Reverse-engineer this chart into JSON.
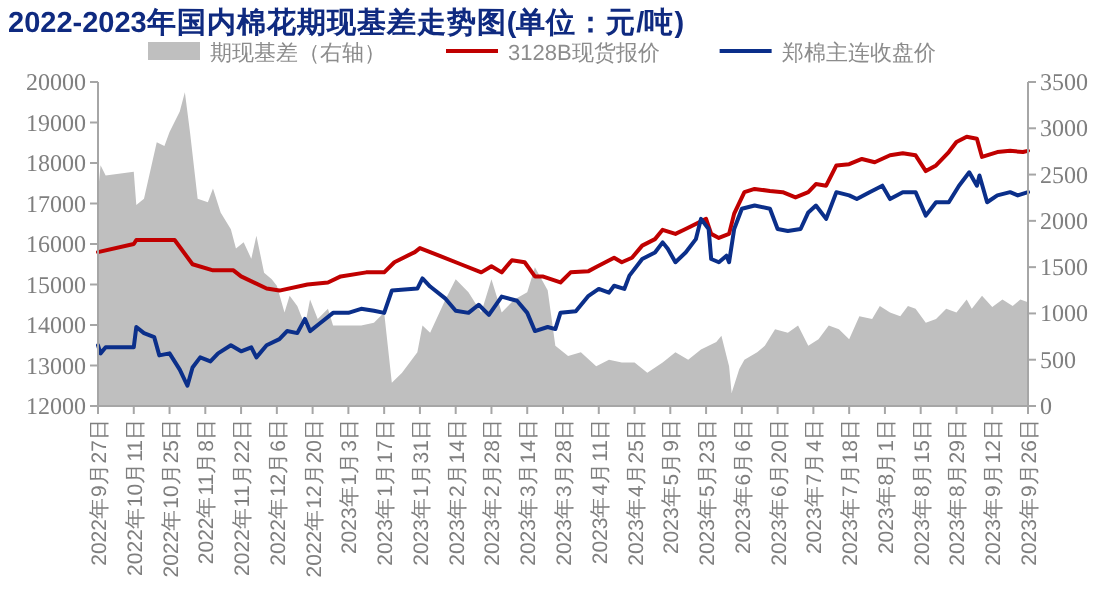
{
  "chart_data": {
    "type": "line",
    "title": "2022-2023年国内棉花期现基差走势图(单位：元/吨)",
    "legend": "top",
    "xlim": [
      "2022-09-27",
      "2023-09-26"
    ],
    "xticks": [
      {
        "value": "2022-09-27",
        "label": "2022年9月27日"
      },
      {
        "value": "2022-10-11",
        "label": "2022年10月11日"
      },
      {
        "value": "2022-10-25",
        "label": "2022年10月25日"
      },
      {
        "value": "2022-11-08",
        "label": "2022年11月8日"
      },
      {
        "value": "2022-11-22",
        "label": "2022年11月22日"
      },
      {
        "value": "2022-12-06",
        "label": "2022年12月6日"
      },
      {
        "value": "2022-12-20",
        "label": "2022年12月20日"
      },
      {
        "value": "2023-01-03",
        "label": "2023年1月3日"
      },
      {
        "value": "2023-01-17",
        "label": "2023年1月17日"
      },
      {
        "value": "2023-01-31",
        "label": "2023年1月31日"
      },
      {
        "value": "2023-02-14",
        "label": "2023年2月14日"
      },
      {
        "value": "2023-02-28",
        "label": "2023年2月28日"
      },
      {
        "value": "2023-03-14",
        "label": "2023年3月14日"
      },
      {
        "value": "2023-03-28",
        "label": "2023年3月28日"
      },
      {
        "value": "2023-04-11",
        "label": "2023年4月11日"
      },
      {
        "value": "2023-04-25",
        "label": "2023年4月25日"
      },
      {
        "value": "2023-05-09",
        "label": "2023年5月9日"
      },
      {
        "value": "2023-05-23",
        "label": "2023年5月23日"
      },
      {
        "value": "2023-06-06",
        "label": "2023年6月6日"
      },
      {
        "value": "2023-06-20",
        "label": "2023年6月20日"
      },
      {
        "value": "2023-07-04",
        "label": "2023年7月4日"
      },
      {
        "value": "2023-07-18",
        "label": "2023年7月18日"
      },
      {
        "value": "2023-08-01",
        "label": "2023年8月1日"
      },
      {
        "value": "2023-08-15",
        "label": "2023年8月15日"
      },
      {
        "value": "2023-08-29",
        "label": "2023年8月29日"
      },
      {
        "value": "2023-09-12",
        "label": "2023年9月12日"
      },
      {
        "value": "2023-09-26",
        "label": "2023年9月26日"
      }
    ],
    "ylim": [
      12000,
      20000
    ],
    "yticks": [
      12000,
      13000,
      14000,
      15000,
      16000,
      17000,
      18000,
      19000,
      20000
    ],
    "y2lim": [
      0,
      3500
    ],
    "y2ticks": [
      0,
      500,
      1000,
      1500,
      2000,
      2500,
      3000,
      3500
    ],
    "series": [
      {
        "name": "期现基差（右轴）",
        "type": "area",
        "axis": "y2",
        "color": "#bfbfbf",
        "x": [
          "2022-09-27",
          "2022-09-28",
          "2022-09-30",
          "2022-10-11",
          "2022-10-12",
          "2022-10-15",
          "2022-10-20",
          "2022-10-23",
          "2022-10-25",
          "2022-10-29",
          "2022-10-31",
          "2022-11-02",
          "2022-11-05",
          "2022-11-09",
          "2022-11-11",
          "2022-11-14",
          "2022-11-18",
          "2022-11-20",
          "2022-11-23",
          "2022-11-26",
          "2022-11-28",
          "2022-12-01",
          "2022-12-04",
          "2022-12-06",
          "2022-12-09",
          "2022-12-11",
          "2022-12-14",
          "2022-12-17",
          "2022-12-19",
          "2022-12-22",
          "2022-12-26",
          "2022-12-28",
          "2023-01-03",
          "2023-01-08",
          "2023-01-13",
          "2023-01-17",
          "2023-01-20",
          "2023-01-24",
          "2023-01-30",
          "2023-02-01",
          "2023-02-04",
          "2023-02-10",
          "2023-02-14",
          "2023-02-19",
          "2023-02-24",
          "2023-02-28",
          "2023-03-04",
          "2023-03-09",
          "2023-03-14",
          "2023-03-17",
          "2023-03-22",
          "2023-03-25",
          "2023-03-30",
          "2023-04-04",
          "2023-04-10",
          "2023-04-15",
          "2023-04-20",
          "2023-04-25",
          "2023-04-30",
          "2023-05-06",
          "2023-05-11",
          "2023-05-16",
          "2023-05-21",
          "2023-05-27",
          "2023-05-29",
          "2023-06-01",
          "2023-06-02",
          "2023-06-05",
          "2023-06-07",
          "2023-06-12",
          "2023-06-15",
          "2023-06-19",
          "2023-06-24",
          "2023-06-28",
          "2023-07-02",
          "2023-07-06",
          "2023-07-10",
          "2023-07-14",
          "2023-07-18",
          "2023-07-22",
          "2023-07-27",
          "2023-07-30",
          "2023-08-03",
          "2023-08-07",
          "2023-08-10",
          "2023-08-13",
          "2023-08-17",
          "2023-08-21",
          "2023-08-25",
          "2023-08-29",
          "2023-09-02",
          "2023-09-04",
          "2023-09-08",
          "2023-09-12",
          "2023-09-16",
          "2023-09-20",
          "2023-09-23",
          "2023-09-26"
        ],
        "values": [
          2310,
          2600,
          2490,
          2530,
          2170,
          2240,
          2850,
          2810,
          2960,
          3180,
          3390,
          2960,
          2240,
          2200,
          2350,
          2090,
          1910,
          1700,
          1770,
          1590,
          1840,
          1440,
          1370,
          1300,
          1010,
          1190,
          1080,
          870,
          1150,
          940,
          1050,
          870,
          870,
          870,
          900,
          1010,
          250,
          360,
          580,
          870,
          790,
          1150,
          1370,
          1230,
          1010,
          1370,
          1010,
          1150,
          1230,
          1500,
          1250,
          650,
          540,
          580,
          430,
          500,
          470,
          470,
          360,
          470,
          580,
          500,
          610,
          690,
          760,
          430,
          140,
          400,
          500,
          580,
          650,
          830,
          790,
          870,
          650,
          720,
          870,
          830,
          720,
          970,
          940,
          1080,
          1010,
          970,
          1080,
          1050,
          900,
          940,
          1050,
          1010,
          1150,
          1050,
          1190,
          1070,
          1150,
          1080,
          1150,
          1120
        ]
      },
      {
        "name": "3128B现货报价",
        "color": "#c00000",
        "x": [
          "2022-09-27",
          "2022-10-11",
          "2022-10-12",
          "2022-10-27",
          "2022-11-03",
          "2022-11-11",
          "2022-11-19",
          "2022-11-22",
          "2022-12-02",
          "2022-12-07",
          "2022-12-18",
          "2022-12-26",
          "2022-12-31",
          "2023-01-10",
          "2023-01-17",
          "2023-01-21",
          "2023-01-29",
          "2023-01-31",
          "2023-02-08",
          "2023-02-16",
          "2023-02-24",
          "2023-02-28",
          "2023-03-04",
          "2023-03-08",
          "2023-03-13",
          "2023-03-17",
          "2023-03-20",
          "2023-03-27",
          "2023-03-31",
          "2023-04-07",
          "2023-04-10",
          "2023-04-17",
          "2023-04-20",
          "2023-04-24",
          "2023-04-28",
          "2023-05-03",
          "2023-05-06",
          "2023-05-11",
          "2023-05-15",
          "2023-05-23",
          "2023-05-25",
          "2023-05-28",
          "2023-06-01",
          "2023-06-03",
          "2023-06-07",
          "2023-06-11",
          "2023-06-17",
          "2023-06-22",
          "2023-06-27",
          "2023-07-02",
          "2023-07-05",
          "2023-07-09",
          "2023-07-13",
          "2023-07-18",
          "2023-07-23",
          "2023-07-28",
          "2023-08-03",
          "2023-08-08",
          "2023-08-13",
          "2023-08-17",
          "2023-08-21",
          "2023-08-26",
          "2023-08-29",
          "2023-09-02",
          "2023-09-06",
          "2023-09-08",
          "2023-09-14",
          "2023-09-19",
          "2023-09-24",
          "2023-09-26"
        ],
        "values": [
          15800,
          16000,
          16100,
          16100,
          15500,
          15350,
          15350,
          15200,
          14900,
          14850,
          15000,
          15050,
          15200,
          15300,
          15300,
          15550,
          15800,
          15900,
          15700,
          15500,
          15300,
          15450,
          15300,
          15600,
          15550,
          15200,
          15200,
          15050,
          15300,
          15330,
          15430,
          15660,
          15550,
          15660,
          15960,
          16120,
          16350,
          16250,
          16370,
          16620,
          16250,
          16150,
          16250,
          16750,
          17280,
          17360,
          17310,
          17280,
          17150,
          17280,
          17480,
          17440,
          17940,
          17970,
          18100,
          18020,
          18190,
          18240,
          18190,
          17800,
          17940,
          18270,
          18520,
          18650,
          18600,
          18150,
          18270,
          18300,
          18270,
          18300
        ]
      },
      {
        "name": "郑棉主连收盘价",
        "color": "#0b2f8a",
        "x": [
          "2022-09-27",
          "2022-09-28",
          "2022-09-30",
          "2022-10-11",
          "2022-10-12",
          "2022-10-15",
          "2022-10-19",
          "2022-10-21",
          "2022-10-25",
          "2022-10-29",
          "2022-11-01",
          "2022-11-03",
          "2022-11-06",
          "2022-11-10",
          "2022-11-13",
          "2022-11-18",
          "2022-11-22",
          "2022-11-26",
          "2022-11-28",
          "2022-12-02",
          "2022-12-07",
          "2022-12-10",
          "2022-12-14",
          "2022-12-17",
          "2022-12-19",
          "2022-12-23",
          "2022-12-28",
          "2023-01-03",
          "2023-01-08",
          "2023-01-13",
          "2023-01-17",
          "2023-01-20",
          "2023-01-30",
          "2023-02-01",
          "2023-02-04",
          "2023-02-10",
          "2023-02-14",
          "2023-02-19",
          "2023-02-23",
          "2023-02-27",
          "2023-03-04",
          "2023-03-10",
          "2023-03-14",
          "2023-03-17",
          "2023-03-22",
          "2023-03-25",
          "2023-03-27",
          "2023-04-02",
          "2023-04-07",
          "2023-04-11",
          "2023-04-15",
          "2023-04-17",
          "2023-04-21",
          "2023-04-23",
          "2023-04-28",
          "2023-05-03",
          "2023-05-06",
          "2023-05-08",
          "2023-05-11",
          "2023-05-15",
          "2023-05-19",
          "2023-05-21",
          "2023-05-24",
          "2023-05-25",
          "2023-05-28",
          "2023-05-31",
          "2023-06-01",
          "2023-06-03",
          "2023-06-06",
          "2023-06-11",
          "2023-06-17",
          "2023-06-20",
          "2023-06-24",
          "2023-06-29",
          "2023-07-02",
          "2023-07-05",
          "2023-07-09",
          "2023-07-13",
          "2023-07-18",
          "2023-07-21",
          "2023-07-26",
          "2023-07-31",
          "2023-08-03",
          "2023-08-08",
          "2023-08-13",
          "2023-08-17",
          "2023-08-21",
          "2023-08-26",
          "2023-08-30",
          "2023-09-03",
          "2023-09-06",
          "2023-09-07",
          "2023-09-10",
          "2023-09-14",
          "2023-09-19",
          "2023-09-22",
          "2023-09-26"
        ],
        "values": [
          13500,
          13300,
          13450,
          13450,
          13950,
          13800,
          13700,
          13250,
          13300,
          12900,
          12500,
          12950,
          13200,
          13100,
          13300,
          13500,
          13350,
          13450,
          13200,
          13500,
          13650,
          13850,
          13800,
          14150,
          13850,
          14050,
          14300,
          14300,
          14400,
          14350,
          14300,
          14850,
          14900,
          15150,
          14950,
          14650,
          14350,
          14300,
          14500,
          14250,
          14700,
          14600,
          14300,
          13850,
          13950,
          13900,
          14300,
          14340,
          14720,
          14890,
          14800,
          14970,
          14890,
          15220,
          15630,
          15790,
          16040,
          15880,
          15550,
          15790,
          16120,
          16620,
          16370,
          15630,
          15550,
          15710,
          15550,
          16370,
          16870,
          16950,
          16870,
          16370,
          16320,
          16370,
          16780,
          16950,
          16620,
          17280,
          17200,
          17110,
          17280,
          17440,
          17110,
          17280,
          17280,
          16700,
          17030,
          17030,
          17440,
          17770,
          17440,
          17690,
          17030,
          17200,
          17280,
          17200,
          17280
        ]
      }
    ]
  }
}
